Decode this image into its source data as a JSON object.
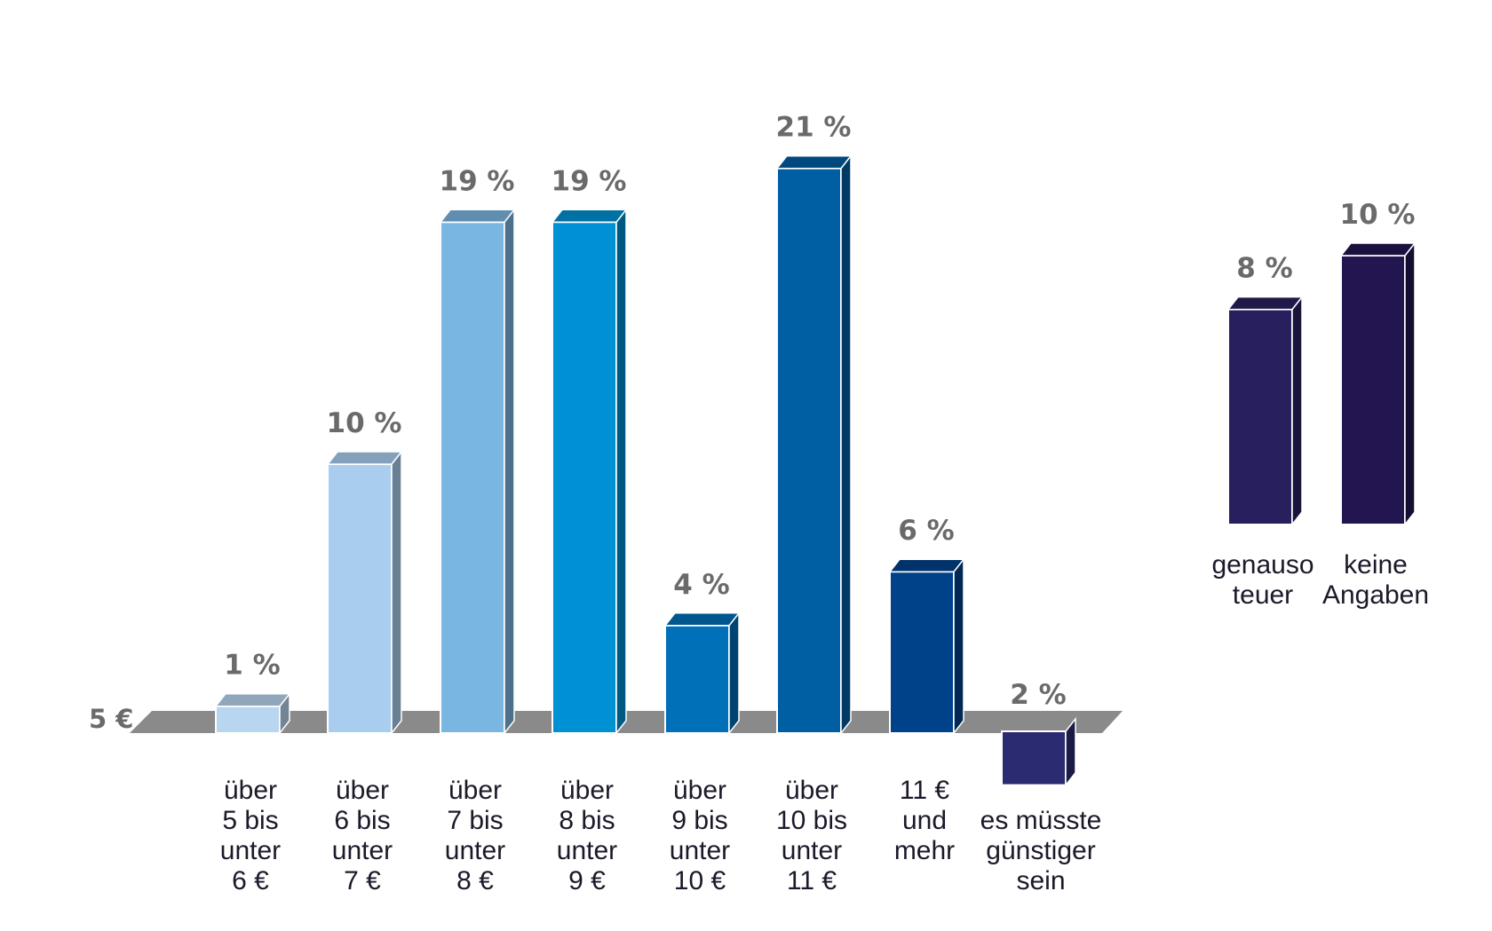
{
  "chart_data": {
    "type": "bar",
    "axis_label": "5 €",
    "unit": "%",
    "categories": [
      "über 5 bis unter 6 €",
      "über 6 bis unter 7 €",
      "über 7 bis unter 8 €",
      "über 8 bis unter 9 €",
      "über 9 bis unter 10 €",
      "über 10 bis unter 11 €",
      "11 € und mehr",
      "es müsste günstiger sein",
      "genauso teuer",
      "keine Angaben"
    ],
    "category_lines": [
      [
        "über",
        "5 bis",
        "unter",
        "6 €"
      ],
      [
        "über",
        "6 bis",
        "unter",
        "7 €"
      ],
      [
        "über",
        "7 bis",
        "unter",
        "8 €"
      ],
      [
        "über",
        "8 bis",
        "unter",
        "9 €"
      ],
      [
        "über",
        "9 bis",
        "unter",
        "10 €"
      ],
      [
        "über",
        "10 bis",
        "unter",
        "11 €"
      ],
      [
        "11 €",
        "und",
        "mehr"
      ],
      [
        "es müsste",
        "günstiger",
        "sein"
      ],
      [
        "genauso",
        "teuer"
      ],
      [
        "keine",
        "Angaben"
      ]
    ],
    "values": [
      1,
      10,
      19,
      19,
      4,
      21,
      6,
      2,
      8,
      10
    ],
    "value_labels": [
      "1 %",
      "10 %",
      "19 %",
      "19 %",
      "4 %",
      "21 %",
      "6 %",
      "2 %",
      "8 %",
      "10 %"
    ],
    "colors": [
      "#b9d6f0",
      "#a9cdee",
      "#7ab6e2",
      "#0090d4",
      "#0070b8",
      "#005ea3",
      "#004289",
      "#2b2b72",
      "#28205e",
      "#221550"
    ]
  }
}
